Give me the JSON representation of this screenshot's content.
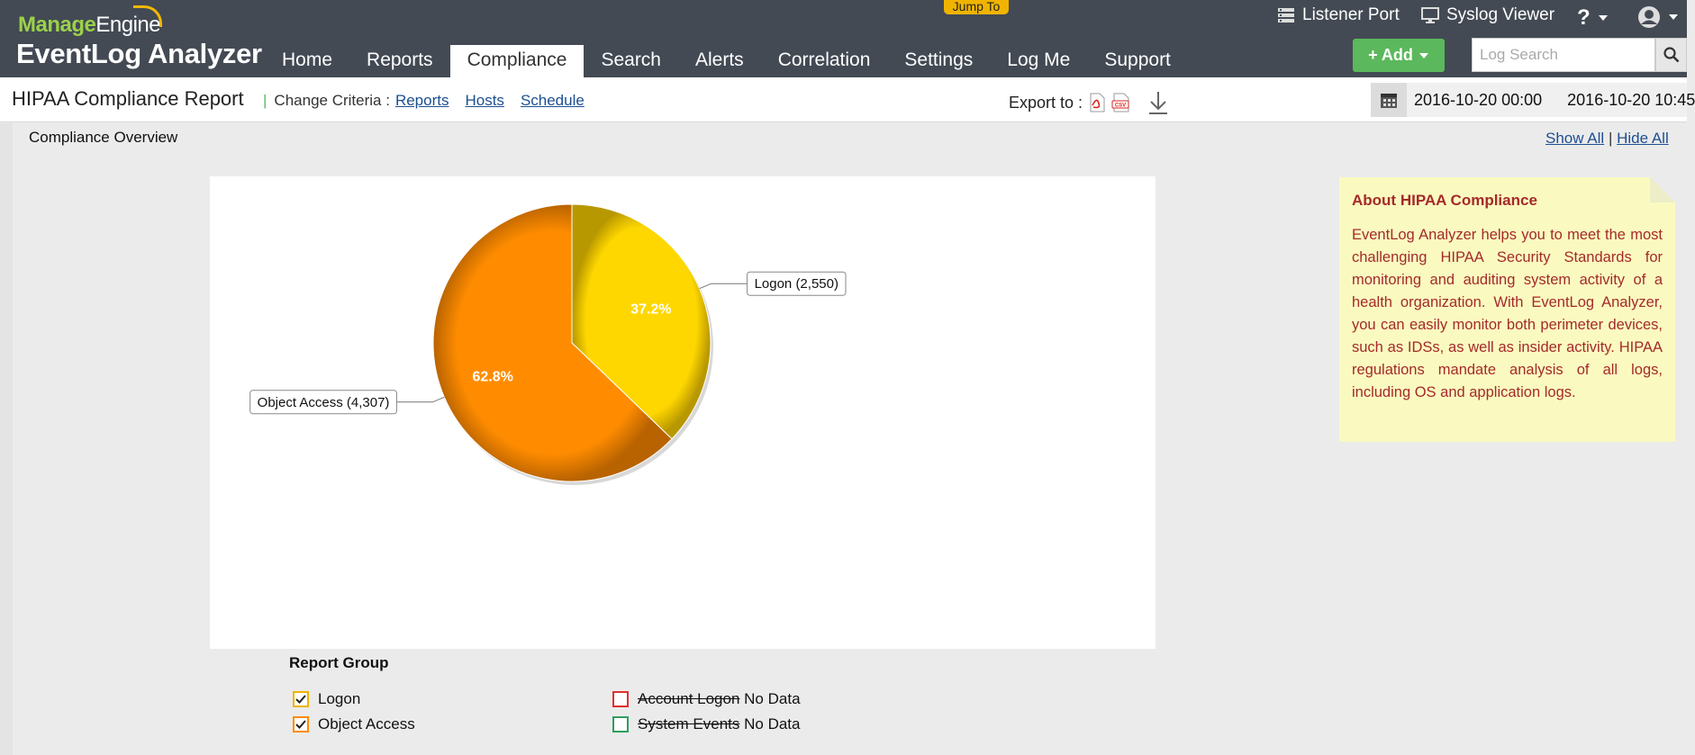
{
  "header": {
    "logo_brand_a": "Manage",
    "logo_brand_b": "Engine",
    "logo_product": "EventLog Analyzer",
    "jump_to": "Jump To",
    "nav": [
      "Home",
      "Reports",
      "Compliance",
      "Search",
      "Alerts",
      "Correlation",
      "Settings",
      "Log Me",
      "Support"
    ],
    "active_nav": "Compliance",
    "listener_port": "Listener Port",
    "syslog_viewer": "Syslog Viewer",
    "help": "?",
    "add_label": "+ Add",
    "search_placeholder": "Log Search"
  },
  "subheader": {
    "title": "HIPAA Compliance Report",
    "change_criteria": "Change Criteria :",
    "links": [
      "Reports",
      "Hosts",
      "Schedule"
    ],
    "export_to": "Export to :",
    "date_from": "2016-10-20 00:00",
    "date_to": "2016-10-20 10:45"
  },
  "overview": {
    "title": "Compliance Overview",
    "show_all": "Show All",
    "separator": "|",
    "hide_all": "Hide All"
  },
  "chart_data": {
    "type": "pie",
    "slices": [
      {
        "label": "Logon (2,550)",
        "value": 2550,
        "percent_label": "37.2%",
        "color": "#ffd700"
      },
      {
        "label": "Object Access (4,307)",
        "value": 4307,
        "percent_label": "62.8%",
        "color": "#ff8c00"
      }
    ]
  },
  "about": {
    "title": "About HIPAA Compliance",
    "text": "EventLog Analyzer helps you to meet the most challenging HIPAA Security Standards for monitoring and auditing system activity of a health organization. With EventLog Analyzer, you can easily monitor both perimeter devices, such as IDSs, as well as insider activity. HIPAA regulations mandate analysis of all logs, including OS and application logs."
  },
  "legend": {
    "title": "Report Group",
    "items": [
      {
        "label": "Logon",
        "checked": true,
        "color": "#ffd700",
        "no_data": ""
      },
      {
        "label": "Object Access",
        "checked": true,
        "color": "#ff8c00",
        "no_data": ""
      },
      {
        "label": "Account Logon",
        "checked": false,
        "color": "#e03030",
        "no_data": "No Data"
      },
      {
        "label": "System Events",
        "checked": false,
        "color": "#2e9e5e",
        "no_data": "No Data"
      }
    ]
  }
}
